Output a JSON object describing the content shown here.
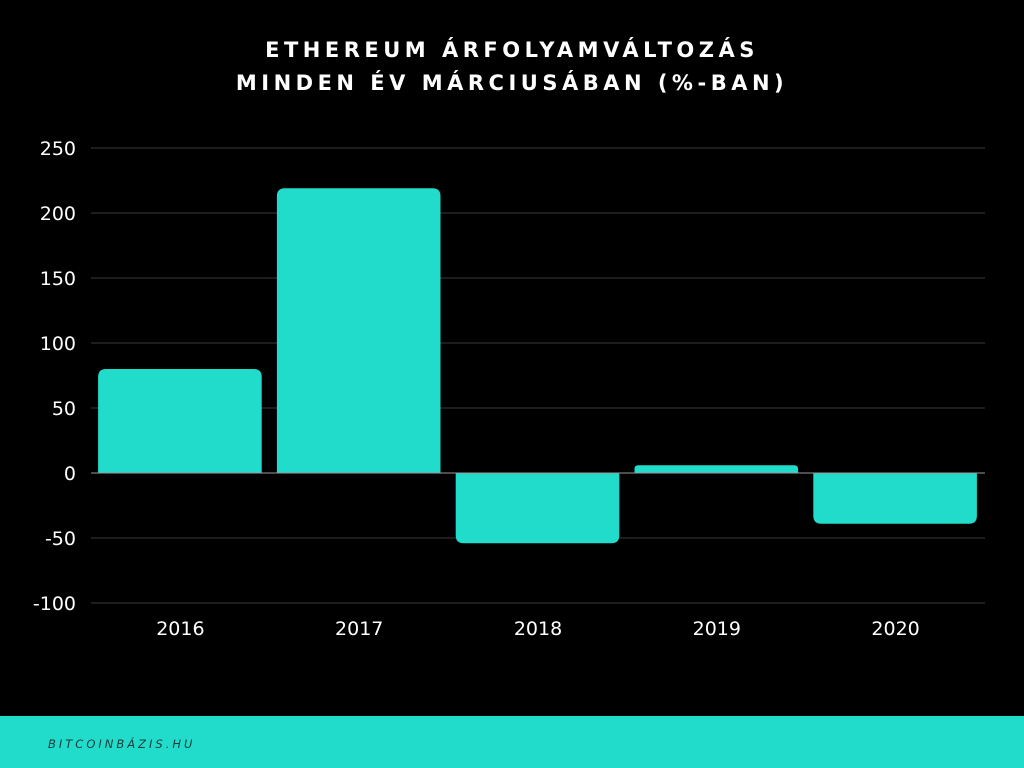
{
  "title": {
    "line1": "ETHEREUM ÁRFOLYAMVÁLTOZÁS",
    "line2": "MINDEN ÉV MÁRCIUSÁBAN (%-BAN)"
  },
  "colors": {
    "background": "#000000",
    "bar": "#22dccb",
    "text": "#ffffff",
    "gridline": "#3a3a3a",
    "footer": "#22dccb"
  },
  "chart_data": {
    "type": "bar",
    "categories": [
      "2016",
      "2017",
      "2018",
      "2019",
      "2020"
    ],
    "values": [
      80,
      219,
      -54,
      6,
      -39
    ],
    "title": "ETHEREUM ÁRFOLYAMVÁLTOZÁS MINDEN ÉV MÁRCIUSÁBAN (%-BAN)",
    "xlabel": "",
    "ylabel": "",
    "ylim": [
      -100,
      250
    ],
    "yticks": [
      250,
      200,
      150,
      100,
      50,
      0,
      -50,
      -100
    ],
    "ytick_labels": [
      "250",
      "200",
      "150",
      "100",
      "50",
      "0",
      "-50",
      "-100"
    ],
    "grid": true,
    "legend": "none"
  },
  "footer": {
    "text": "BITCOINBÁZIS.HU"
  }
}
